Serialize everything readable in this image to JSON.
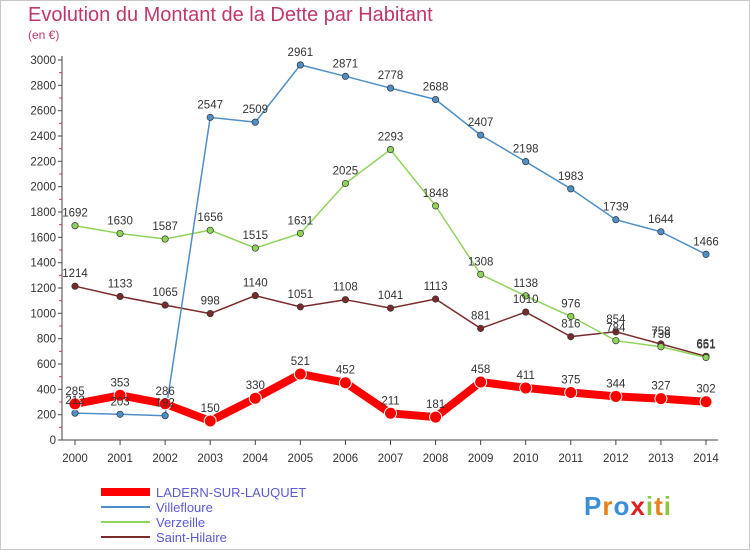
{
  "chart_data": {
    "type": "line",
    "title": "Evolution du Montant de la Dette par Habitant",
    "unit_label": "(en €)",
    "categories": [
      "2000",
      "2001",
      "2002",
      "2003",
      "2004",
      "2005",
      "2006",
      "2007",
      "2008",
      "2009",
      "2010",
      "2011",
      "2012",
      "2013",
      "2014"
    ],
    "ylim": [
      0,
      3000
    ],
    "yticks": [
      0,
      200,
      400,
      600,
      800,
      1000,
      1200,
      1400,
      1600,
      1800,
      2000,
      2200,
      2400,
      2600,
      2800,
      3000
    ],
    "grid": false,
    "legend_position": "bottom-left",
    "series": [
      {
        "name": "Saint-Hilaire",
        "color": "#7a2a2a",
        "values": [
          1214,
          1133,
          1065,
          998,
          1140,
          1051,
          1108,
          1041,
          1113,
          881,
          1010,
          816,
          854,
          758,
          661
        ]
      },
      {
        "name": "Verzeille",
        "color": "#8fd45a",
        "values": [
          1692,
          1630,
          1587,
          1656,
          1515,
          1631,
          2025,
          2293,
          1848,
          1308,
          1138,
          976,
          784,
          736,
          651
        ]
      },
      {
        "name": "Villefloure",
        "color": "#4f8fc8",
        "values": [
          212,
          203,
          192,
          2547,
          2509,
          2961,
          2871,
          2778,
          2688,
          2407,
          2198,
          1983,
          1739,
          1644,
          1466
        ]
      },
      {
        "name": "LADERN-SUR-LAUQUET",
        "color": "#ff0000",
        "emphasis": true,
        "values": [
          285,
          353,
          286,
          150,
          330,
          521,
          452,
          211,
          181,
          458,
          411,
          375,
          344,
          327,
          302
        ]
      }
    ]
  },
  "logo": {
    "letters": [
      "P",
      "r",
      "o",
      "x",
      "i",
      "t",
      "i"
    ],
    "colors": [
      "#3a8fd8",
      "#e8821e",
      "#3a8fd8",
      "#e02020",
      "#8cc63e",
      "#e8821e",
      "#8cc63e"
    ]
  }
}
